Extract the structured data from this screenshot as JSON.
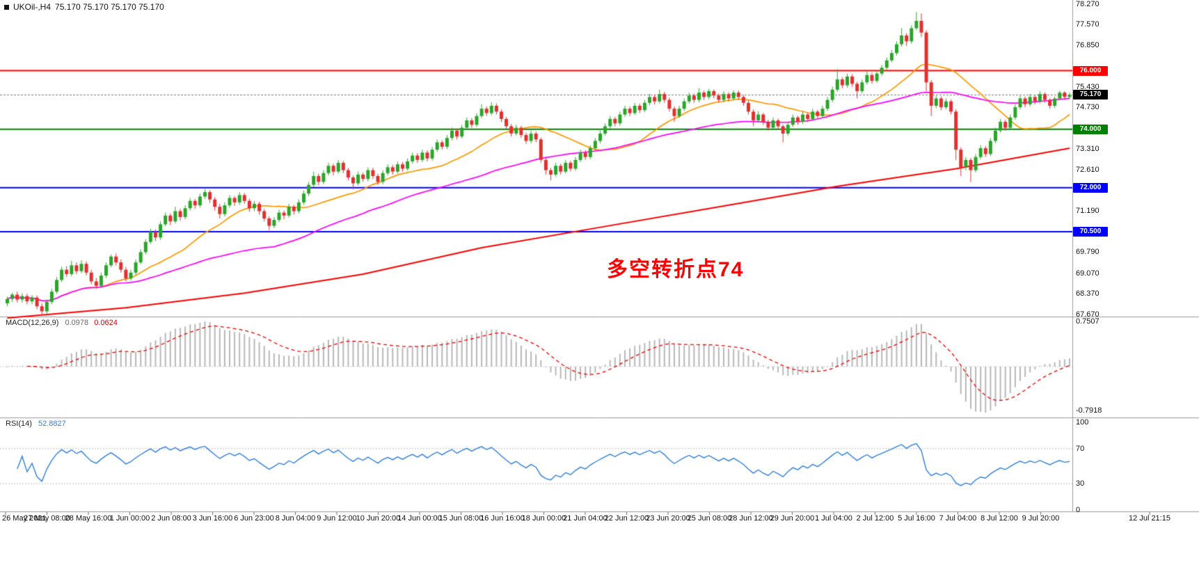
{
  "window": {
    "title_symbol": "UKOil-,H4",
    "ohlc": "75.170 75.170 75.170 75.170"
  },
  "colors": {
    "candle_up": "#2aa52a",
    "candle_down": "#e03030",
    "ma_fast": "#ff9900",
    "ma_mid": "#ff00ff",
    "ma_slow": "#ff0000",
    "macd_hist": "#b8b8b8",
    "macd_signal": "#ee0000",
    "rsi": "#2f7ed8",
    "annotation": "#ff0000",
    "bid_box": "#000000",
    "axis_line": "#999999"
  },
  "main_chart": {
    "y_axis_labels": [
      "78.270",
      "77.570",
      "76.850",
      "75.430",
      "74.730",
      "73.310",
      "72.610",
      "71.190",
      "69.790",
      "69.070",
      "68.370",
      "67.670"
    ]
  },
  "macd": {
    "label": "MACD(12,26,9)",
    "value_main": "0.0978",
    "value_signal": "0.0624",
    "axis_max": "0.7507",
    "axis_min": "-0.7918"
  },
  "rsi": {
    "label": "RSI(14)",
    "value": "52.8827",
    "axis_labels": [
      "100",
      "70",
      "30",
      "0"
    ],
    "levels": [
      70,
      30
    ]
  },
  "annotation": {
    "text": "多空转折点74",
    "color": "#ff0000"
  },
  "time_axis": {
    "labels": [
      "26 May 2021",
      "27 May 08:00",
      "28 May 16:00",
      "1 Jun 00:00",
      "2 Jun 08:00",
      "3 Jun 16:00",
      "6 Jun 23:00",
      "8 Jun 04:00",
      "9 Jun 12:00",
      "10 Jun 20:00",
      "14 Jun 00:00",
      "15 Jun 08:00",
      "16 Jun 16:00",
      "18 Jun 00:00",
      "21 Jun 04:00",
      "22 Jun 12:00",
      "23 Jun 20:00",
      "25 Jun 08:00",
      "28 Jun 12:00",
      "29 Jun 20:00",
      "1 Jul 04:00",
      "2 Jul 12:00",
      "5 Jul 16:00",
      "7 Jul 04:00",
      "8 Jul 12:00",
      "9 Jul 20:00",
      "12 Jul 21:15"
    ]
  },
  "chart_data": {
    "type": "candlestick",
    "symbol": "UKOil-",
    "timeframe": "H4",
    "price_range": [
      67.67,
      78.27
    ],
    "bid_price": 75.17,
    "bid_label": "75.170",
    "hlines": [
      {
        "price": 76.0,
        "label": "76.000",
        "color": "#ff0000"
      },
      {
        "price": 74.0,
        "label": "74.000",
        "color": "#008000"
      },
      {
        "price": 72.0,
        "label": "72.000",
        "color": "#0000ff"
      },
      {
        "price": 70.5,
        "label": "70.500",
        "color": "#0000ff"
      }
    ],
    "overlays": [
      {
        "name": "ma-fast",
        "type": "sma",
        "period": 20,
        "color": "#ff9900"
      },
      {
        "name": "ma-mid",
        "type": "sma",
        "period": 55,
        "color": "#ff00ff"
      },
      {
        "name": "ma-slow",
        "type": "anchors",
        "color": "#ff0000",
        "points": [
          [
            0,
            67.55
          ],
          [
            24,
            67.9
          ],
          [
            48,
            68.4
          ],
          [
            72,
            69.05
          ],
          [
            96,
            69.95
          ],
          [
            120,
            70.65
          ],
          [
            144,
            71.35
          ],
          [
            168,
            72.05
          ],
          [
            192,
            72.65
          ],
          [
            215,
            73.35
          ]
        ]
      }
    ],
    "indicators": [
      {
        "type": "macd",
        "fast": 12,
        "slow": 26,
        "signal": 9
      },
      {
        "type": "rsi",
        "period": 14
      }
    ],
    "candles": [
      [
        68.05,
        68.28,
        67.95,
        68.2
      ],
      [
        68.2,
        68.42,
        68.1,
        68.35
      ],
      [
        68.35,
        68.45,
        68.08,
        68.18
      ],
      [
        68.18,
        68.4,
        68.08,
        68.3
      ],
      [
        68.3,
        68.38,
        68.02,
        68.12
      ],
      [
        68.12,
        68.33,
        68.02,
        68.25
      ],
      [
        68.25,
        68.32,
        67.85,
        67.95
      ],
      [
        67.95,
        68.05,
        67.68,
        67.78
      ],
      [
        67.78,
        68.18,
        67.7,
        68.1
      ],
      [
        68.1,
        68.55,
        68.02,
        68.45
      ],
      [
        68.45,
        68.95,
        68.38,
        68.85
      ],
      [
        68.85,
        69.3,
        68.78,
        69.2
      ],
      [
        69.2,
        69.32,
        68.95,
        69.05
      ],
      [
        69.05,
        69.5,
        68.98,
        69.35
      ],
      [
        69.35,
        69.45,
        69.05,
        69.15
      ],
      [
        69.15,
        69.52,
        69.08,
        69.4
      ],
      [
        69.4,
        69.48,
        69.0,
        69.1
      ],
      [
        69.1,
        69.2,
        68.7,
        68.8
      ],
      [
        68.8,
        68.92,
        68.55,
        68.65
      ],
      [
        68.65,
        69.1,
        68.58,
        69.0
      ],
      [
        69.0,
        69.45,
        68.92,
        69.35
      ],
      [
        69.35,
        69.72,
        69.28,
        69.65
      ],
      [
        69.65,
        69.75,
        69.35,
        69.45
      ],
      [
        69.45,
        69.55,
        69.1,
        69.2
      ],
      [
        69.2,
        69.3,
        68.8,
        68.9
      ],
      [
        68.9,
        69.2,
        68.82,
        69.1
      ],
      [
        69.1,
        69.55,
        69.02,
        69.45
      ],
      [
        69.45,
        69.9,
        69.38,
        69.8
      ],
      [
        69.8,
        70.25,
        69.72,
        70.15
      ],
      [
        70.15,
        70.6,
        70.08,
        70.5
      ],
      [
        70.5,
        70.58,
        70.18,
        70.3
      ],
      [
        70.3,
        70.85,
        70.22,
        70.75
      ],
      [
        70.75,
        71.15,
        70.68,
        71.05
      ],
      [
        71.05,
        71.12,
        70.72,
        70.85
      ],
      [
        70.85,
        71.35,
        70.78,
        71.2
      ],
      [
        71.2,
        71.28,
        70.88,
        71.0
      ],
      [
        71.0,
        71.4,
        70.92,
        71.3
      ],
      [
        71.3,
        71.65,
        71.22,
        71.55
      ],
      [
        71.55,
        71.62,
        71.28,
        71.4
      ],
      [
        71.4,
        71.8,
        71.32,
        71.7
      ],
      [
        71.7,
        71.95,
        71.62,
        71.85
      ],
      [
        71.85,
        71.92,
        71.48,
        71.6
      ],
      [
        71.6,
        71.68,
        71.22,
        71.35
      ],
      [
        71.35,
        71.45,
        70.95,
        71.1
      ],
      [
        71.1,
        71.5,
        71.02,
        71.4
      ],
      [
        71.4,
        71.75,
        71.32,
        71.65
      ],
      [
        71.65,
        71.72,
        71.38,
        71.5
      ],
      [
        71.5,
        71.85,
        71.42,
        71.75
      ],
      [
        71.75,
        71.82,
        71.45,
        71.55
      ],
      [
        71.55,
        71.62,
        71.18,
        71.3
      ],
      [
        71.3,
        71.55,
        71.2,
        71.45
      ],
      [
        71.45,
        71.52,
        71.08,
        71.2
      ],
      [
        71.2,
        71.28,
        70.85,
        70.95
      ],
      [
        70.95,
        71.02,
        70.55,
        70.7
      ],
      [
        70.7,
        71.0,
        70.62,
        70.9
      ],
      [
        70.9,
        71.25,
        70.82,
        71.15
      ],
      [
        71.15,
        71.22,
        70.92,
        71.05
      ],
      [
        71.05,
        71.45,
        70.98,
        71.35
      ],
      [
        71.35,
        71.42,
        71.08,
        71.2
      ],
      [
        71.2,
        71.6,
        71.12,
        71.5
      ],
      [
        71.5,
        71.9,
        71.42,
        71.8
      ],
      [
        71.8,
        72.2,
        71.72,
        72.1
      ],
      [
        72.1,
        72.55,
        72.02,
        72.4
      ],
      [
        72.4,
        72.48,
        72.08,
        72.2
      ],
      [
        72.2,
        72.6,
        72.12,
        72.5
      ],
      [
        72.5,
        72.85,
        72.42,
        72.75
      ],
      [
        72.75,
        72.82,
        72.42,
        72.55
      ],
      [
        72.55,
        72.95,
        72.48,
        72.85
      ],
      [
        72.85,
        72.92,
        72.5,
        72.6
      ],
      [
        72.6,
        72.68,
        72.25,
        72.35
      ],
      [
        72.35,
        72.42,
        71.95,
        72.15
      ],
      [
        72.15,
        72.55,
        72.08,
        72.45
      ],
      [
        72.45,
        72.52,
        72.2,
        72.3
      ],
      [
        72.3,
        72.7,
        72.22,
        72.6
      ],
      [
        72.6,
        72.68,
        72.3,
        72.4
      ],
      [
        72.4,
        72.48,
        72.1,
        72.2
      ],
      [
        72.2,
        72.6,
        72.12,
        72.5
      ],
      [
        72.5,
        72.8,
        72.42,
        72.7
      ],
      [
        72.7,
        72.78,
        72.45,
        72.55
      ],
      [
        72.55,
        72.9,
        72.48,
        72.8
      ],
      [
        72.8,
        72.88,
        72.55,
        72.65
      ],
      [
        72.65,
        73.0,
        72.58,
        72.9
      ],
      [
        72.9,
        73.2,
        72.82,
        73.1
      ],
      [
        73.1,
        73.18,
        72.85,
        72.95
      ],
      [
        72.95,
        73.3,
        72.88,
        73.2
      ],
      [
        73.2,
        73.28,
        72.9,
        73.0
      ],
      [
        73.0,
        73.4,
        72.92,
        73.3
      ],
      [
        73.3,
        73.65,
        73.22,
        73.55
      ],
      [
        73.55,
        73.62,
        73.3,
        73.4
      ],
      [
        73.4,
        73.8,
        73.32,
        73.7
      ],
      [
        73.7,
        74.05,
        73.62,
        73.95
      ],
      [
        73.95,
        74.02,
        73.65,
        73.75
      ],
      [
        73.75,
        74.15,
        73.68,
        74.05
      ],
      [
        74.05,
        74.4,
        73.98,
        74.3
      ],
      [
        74.3,
        74.38,
        74.05,
        74.15
      ],
      [
        74.15,
        74.55,
        74.08,
        74.45
      ],
      [
        74.45,
        74.85,
        74.38,
        74.7
      ],
      [
        74.7,
        74.78,
        74.45,
        74.55
      ],
      [
        74.55,
        74.92,
        74.48,
        74.8
      ],
      [
        74.8,
        74.88,
        74.5,
        74.6
      ],
      [
        74.6,
        74.68,
        74.25,
        74.35
      ],
      [
        74.35,
        74.42,
        74.0,
        74.1
      ],
      [
        74.1,
        74.18,
        73.75,
        73.85
      ],
      [
        73.85,
        74.15,
        73.78,
        74.05
      ],
      [
        74.05,
        74.12,
        73.7,
        73.8
      ],
      [
        73.8,
        73.88,
        73.5,
        73.6
      ],
      [
        73.6,
        73.95,
        73.52,
        73.85
      ],
      [
        73.85,
        73.92,
        73.55,
        73.65
      ],
      [
        73.65,
        73.72,
        72.85,
        72.95
      ],
      [
        72.95,
        73.02,
        72.45,
        72.6
      ],
      [
        72.6,
        72.68,
        72.25,
        72.45
      ],
      [
        72.45,
        72.85,
        72.38,
        72.75
      ],
      [
        72.75,
        72.82,
        72.45,
        72.55
      ],
      [
        72.55,
        72.95,
        72.48,
        72.85
      ],
      [
        72.85,
        72.92,
        72.55,
        72.65
      ],
      [
        72.65,
        73.05,
        72.58,
        72.95
      ],
      [
        72.95,
        73.3,
        72.88,
        73.2
      ],
      [
        73.2,
        73.28,
        72.95,
        73.05
      ],
      [
        73.05,
        73.45,
        72.98,
        73.35
      ],
      [
        73.35,
        73.7,
        73.28,
        73.6
      ],
      [
        73.6,
        73.95,
        73.52,
        73.85
      ],
      [
        73.85,
        74.2,
        73.78,
        74.1
      ],
      [
        74.1,
        74.45,
        74.02,
        74.35
      ],
      [
        74.35,
        74.42,
        74.1,
        74.2
      ],
      [
        74.2,
        74.6,
        74.12,
        74.5
      ],
      [
        74.5,
        74.8,
        74.42,
        74.7
      ],
      [
        74.7,
        74.78,
        74.45,
        74.55
      ],
      [
        74.55,
        74.9,
        74.48,
        74.8
      ],
      [
        74.8,
        74.88,
        74.55,
        74.65
      ],
      [
        74.65,
        75.0,
        74.58,
        74.9
      ],
      [
        74.9,
        75.2,
        74.82,
        75.1
      ],
      [
        75.1,
        75.18,
        74.85,
        74.95
      ],
      [
        74.95,
        75.35,
        74.88,
        75.2
      ],
      [
        75.2,
        75.28,
        74.9,
        75.0
      ],
      [
        75.0,
        75.08,
        74.6,
        74.7
      ],
      [
        74.7,
        74.78,
        74.25,
        74.45
      ],
      [
        74.45,
        74.8,
        74.38,
        74.7
      ],
      [
        74.7,
        75.05,
        74.62,
        74.95
      ],
      [
        74.95,
        75.25,
        74.88,
        75.15
      ],
      [
        75.15,
        75.22,
        74.9,
        75.0
      ],
      [
        75.0,
        75.4,
        74.92,
        75.25
      ],
      [
        75.25,
        75.32,
        75.0,
        75.1
      ],
      [
        75.1,
        75.38,
        75.02,
        75.3
      ],
      [
        75.3,
        75.36,
        75.05,
        75.15
      ],
      [
        75.15,
        75.22,
        74.9,
        75.0
      ],
      [
        75.0,
        75.3,
        74.92,
        75.2
      ],
      [
        75.2,
        75.26,
        74.95,
        75.05
      ],
      [
        75.05,
        75.33,
        74.98,
        75.25
      ],
      [
        75.25,
        75.32,
        75.0,
        75.1
      ],
      [
        75.1,
        75.16,
        74.8,
        74.9
      ],
      [
        74.9,
        74.98,
        74.5,
        74.6
      ],
      [
        74.6,
        74.68,
        74.1,
        74.3
      ],
      [
        74.3,
        74.62,
        74.22,
        74.5
      ],
      [
        74.5,
        74.56,
        74.15,
        74.25
      ],
      [
        74.25,
        74.32,
        73.95,
        74.05
      ],
      [
        74.05,
        74.4,
        73.98,
        74.3
      ],
      [
        74.3,
        74.36,
        74.0,
        74.1
      ],
      [
        74.1,
        74.16,
        73.55,
        73.85
      ],
      [
        73.85,
        74.25,
        73.78,
        74.15
      ],
      [
        74.15,
        74.5,
        74.08,
        74.4
      ],
      [
        74.4,
        74.46,
        74.15,
        74.25
      ],
      [
        74.25,
        74.6,
        74.18,
        74.5
      ],
      [
        74.5,
        74.56,
        74.25,
        74.35
      ],
      [
        74.35,
        74.7,
        74.28,
        74.6
      ],
      [
        74.6,
        74.66,
        74.35,
        74.45
      ],
      [
        74.45,
        74.8,
        74.38,
        74.7
      ],
      [
        74.7,
        75.1,
        74.62,
        75.0
      ],
      [
        75.0,
        75.45,
        74.92,
        75.35
      ],
      [
        75.35,
        76.05,
        75.28,
        75.7
      ],
      [
        75.7,
        75.78,
        75.4,
        75.5
      ],
      [
        75.5,
        75.9,
        75.42,
        75.8
      ],
      [
        75.8,
        75.88,
        75.45,
        75.55
      ],
      [
        75.55,
        75.62,
        75.05,
        75.3
      ],
      [
        75.3,
        75.7,
        75.22,
        75.6
      ],
      [
        75.6,
        76.0,
        75.52,
        75.85
      ],
      [
        75.85,
        75.92,
        75.55,
        75.65
      ],
      [
        75.65,
        76.0,
        75.58,
        75.9
      ],
      [
        75.9,
        76.2,
        75.82,
        76.1
      ],
      [
        76.1,
        76.45,
        76.02,
        76.35
      ],
      [
        76.35,
        76.7,
        76.28,
        76.6
      ],
      [
        76.6,
        77.0,
        76.52,
        76.9
      ],
      [
        76.9,
        77.45,
        76.82,
        77.2
      ],
      [
        77.2,
        77.28,
        76.85,
        77.0
      ],
      [
        77.0,
        77.55,
        76.92,
        77.45
      ],
      [
        77.45,
        78.0,
        77.38,
        77.7
      ],
      [
        77.7,
        77.95,
        77.15,
        77.3
      ],
      [
        77.3,
        77.38,
        75.3,
        75.6
      ],
      [
        75.6,
        75.68,
        74.45,
        74.8
      ],
      [
        74.8,
        75.15,
        74.72,
        75.05
      ],
      [
        75.05,
        75.12,
        74.65,
        74.75
      ],
      [
        74.75,
        75.05,
        74.68,
        74.95
      ],
      [
        74.95,
        75.02,
        74.5,
        74.6
      ],
      [
        74.6,
        74.68,
        72.95,
        73.3
      ],
      [
        73.3,
        73.38,
        72.4,
        72.7
      ],
      [
        72.7,
        73.05,
        72.6,
        72.95
      ],
      [
        72.95,
        73.02,
        72.2,
        72.6
      ],
      [
        72.6,
        73.15,
        72.52,
        73.05
      ],
      [
        73.05,
        73.45,
        72.98,
        73.35
      ],
      [
        73.35,
        73.42,
        73.05,
        73.15
      ],
      [
        73.15,
        73.7,
        73.08,
        73.6
      ],
      [
        73.6,
        74.05,
        73.52,
        73.95
      ],
      [
        73.95,
        74.35,
        73.88,
        74.25
      ],
      [
        74.25,
        74.32,
        73.95,
        74.05
      ],
      [
        74.05,
        74.5,
        73.98,
        74.4
      ],
      [
        74.4,
        74.85,
        74.32,
        74.75
      ],
      [
        74.75,
        75.15,
        74.68,
        75.05
      ],
      [
        75.05,
        75.12,
        74.75,
        74.85
      ],
      [
        74.85,
        75.2,
        74.78,
        75.1
      ],
      [
        75.1,
        75.16,
        74.85,
        74.95
      ],
      [
        74.95,
        75.3,
        74.88,
        75.2
      ],
      [
        75.2,
        75.26,
        74.9,
        75.0
      ],
      [
        75.0,
        75.06,
        74.7,
        74.8
      ],
      [
        74.8,
        75.12,
        74.72,
        75.05
      ],
      [
        75.05,
        75.32,
        74.98,
        75.25
      ],
      [
        75.25,
        75.3,
        75.0,
        75.1
      ],
      [
        75.1,
        75.25,
        75.02,
        75.17
      ]
    ]
  }
}
